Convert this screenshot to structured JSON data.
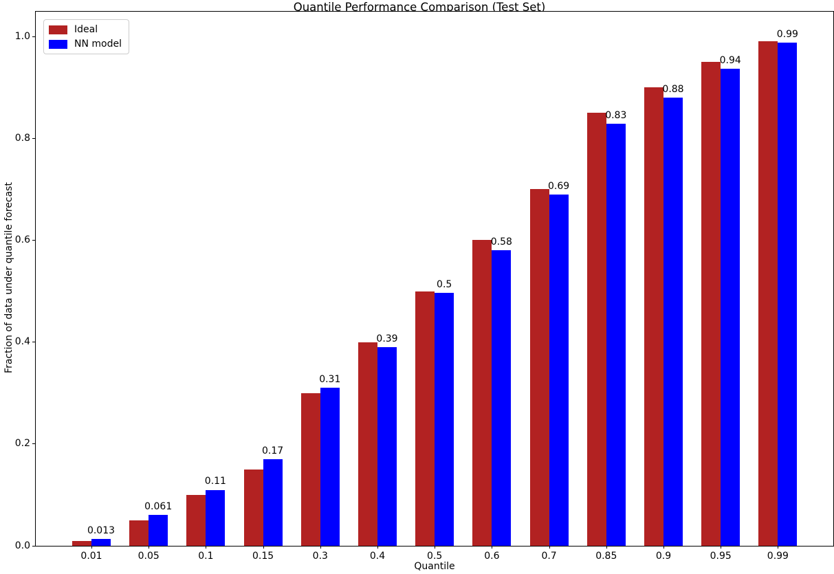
{
  "chart_data": {
    "type": "bar",
    "title": "Quantile Performance Comparison (Test Set)",
    "xlabel": "Quantile",
    "ylabel": "Fraction of data under quantile forecast",
    "categories": [
      "0.01",
      "0.05",
      "0.1",
      "0.15",
      "0.3",
      "0.4",
      "0.5",
      "0.6",
      "0.7",
      "0.85",
      "0.9",
      "0.95",
      "0.99"
    ],
    "series": [
      {
        "name": "Ideal",
        "color": "#b22222",
        "values": [
          0.01,
          0.05,
          0.1,
          0.15,
          0.3,
          0.4,
          0.5,
          0.6,
          0.7,
          0.85,
          0.9,
          0.95,
          0.99
        ]
      },
      {
        "name": "NN model",
        "color": "#0000ff",
        "values": [
          0.013,
          0.061,
          0.11,
          0.17,
          0.31,
          0.39,
          0.497,
          0.58,
          0.69,
          0.828,
          0.88,
          0.937,
          0.988
        ]
      }
    ],
    "bar_value_labels": [
      "0.013",
      "0.061",
      "0.11",
      "0.17",
      "0.31",
      "0.39",
      "0.5",
      "0.58",
      "0.69",
      "0.83",
      "0.88",
      "0.94",
      "0.99"
    ],
    "yticks": [
      {
        "value": 0.0,
        "label": "0.0"
      },
      {
        "value": 0.2,
        "label": "0.2"
      },
      {
        "value": 0.4,
        "label": "0.4"
      },
      {
        "value": 0.6,
        "label": "0.6"
      },
      {
        "value": 0.8,
        "label": "0.8"
      },
      {
        "value": 1.0,
        "label": "1.0"
      }
    ],
    "ylim": [
      0,
      1.0486
    ],
    "grid": false,
    "legend_position": "upper left",
    "background_color": "#ffffff",
    "spine_color": "#000000",
    "text_color": "#000000"
  }
}
